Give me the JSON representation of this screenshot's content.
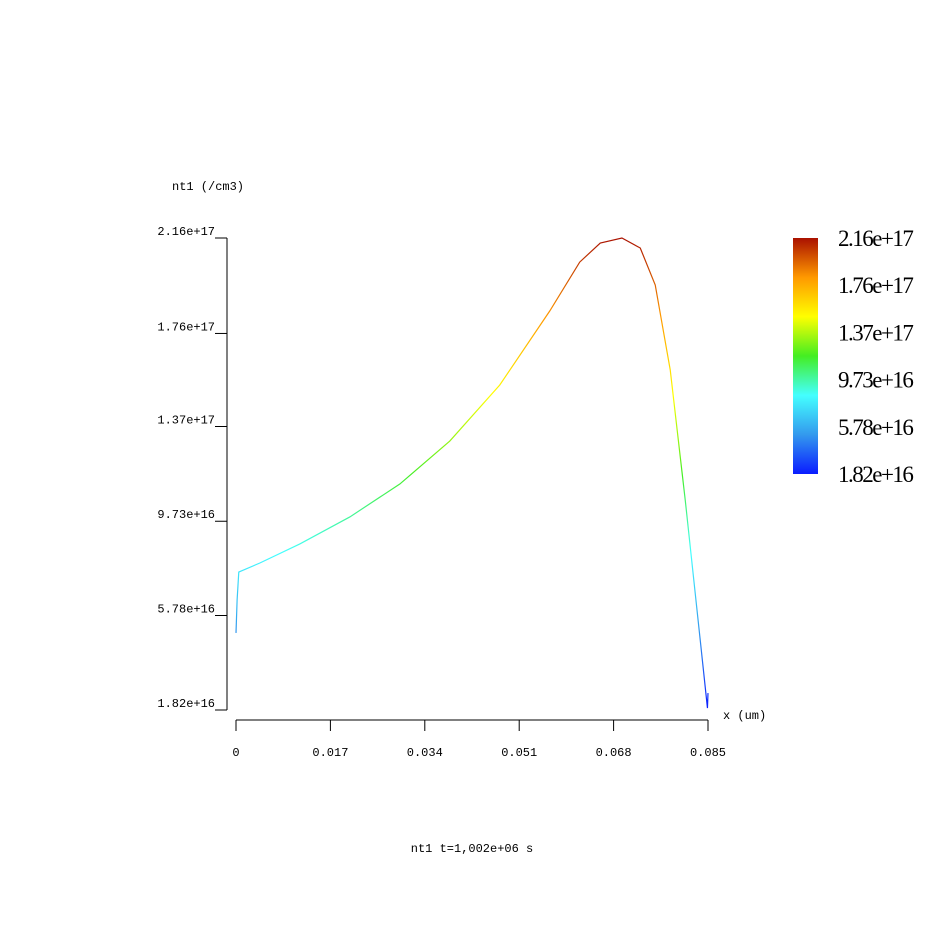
{
  "chart_data": {
    "type": "line",
    "title": "nt1 t=1,002e+06 s",
    "y_label": "nt1 (/cm3)",
    "x_label": "x (um)",
    "x": [
      0,
      0.0002,
      0.0005,
      0.0043,
      0.0115,
      0.0205,
      0.0295,
      0.0385,
      0.0475,
      0.0565,
      0.0619,
      0.0656,
      0.0695,
      0.0728,
      0.0755,
      0.0782,
      0.0809,
      0.0836,
      0.0849,
      0.085
    ],
    "values": [
      5.05e+16,
      6.43e+16,
      7.6e+16,
      7.98e+16,
      8.78e+16,
      9.91e+16,
      1.129e+17,
      1.309e+17,
      1.544e+17,
      1.854e+17,
      2.059e+17,
      2.139e+17,
      2.16e+17,
      2.118e+17,
      1.963e+17,
      1.607e+17,
      1.062e+17,
      4.75e+16,
      1.9e+16,
      2.53e+16
    ],
    "xlim": [
      0,
      0.085
    ],
    "xticks": [
      0,
      0.017,
      0.034,
      0.051,
      0.068,
      0.085
    ],
    "ylim": [
      1.82e+16,
      2.16e+17
    ],
    "yticks": [
      {
        "value": 1.82e+16,
        "label": "1.82e+16"
      },
      {
        "value": 5.78e+16,
        "label": "5.78e+16"
      },
      {
        "value": 9.73e+16,
        "label": "9.73e+16"
      },
      {
        "value": 1.37e+17,
        "label": "1.37e+17"
      },
      {
        "value": 1.76e+17,
        "label": "1.76e+17"
      },
      {
        "value": 2.16e+17,
        "label": "2.16e+17"
      }
    ],
    "colormap": [
      "#0a1cff",
      "#3399ee",
      "#44ffff",
      "#44ee22",
      "#ffff00",
      "#ff9900",
      "#aa1100"
    ],
    "colorbar": true
  }
}
